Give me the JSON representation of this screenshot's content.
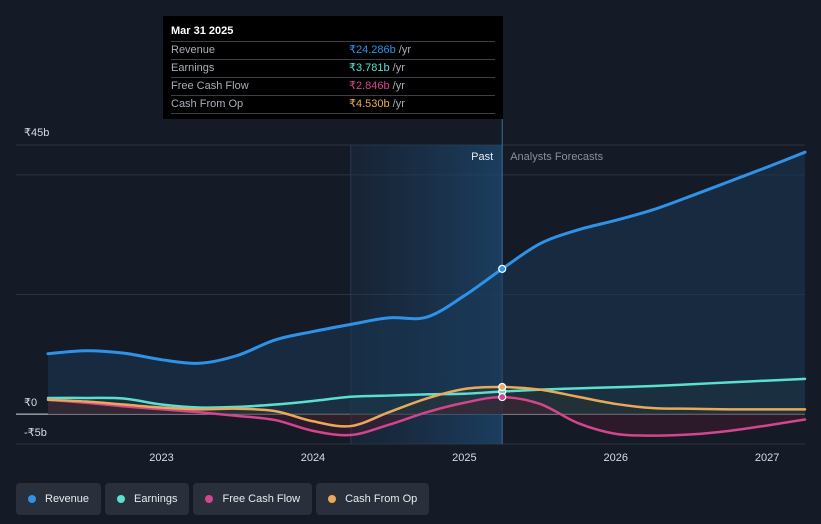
{
  "chart_data": {
    "type": "area",
    "y_unit_prefix": "₹",
    "ylim": [
      -5,
      45
    ],
    "y_tick_labels": [
      {
        "value": 45,
        "label": "₹45b"
      },
      {
        "value": 0,
        "label": "₹0"
      },
      {
        "value": -5,
        "label": "-₹5b"
      }
    ],
    "x_range": [
      2022.25,
      2027.25
    ],
    "x_ticks": [
      {
        "value": 2023,
        "label": "2023"
      },
      {
        "value": 2024,
        "label": "2024"
      },
      {
        "value": 2025,
        "label": "2025"
      },
      {
        "value": 2026,
        "label": "2026"
      },
      {
        "value": 2027,
        "label": "2027"
      }
    ],
    "shaded_region_start": 2024.25,
    "divider_x": 2025.25,
    "past_label": "Past",
    "forecast_label": "Analysts Forecasts",
    "series": [
      {
        "name": "Revenue",
        "color": "#2e93e8",
        "points": [
          [
            2022.25,
            10.1
          ],
          [
            2022.5,
            10.6
          ],
          [
            2022.75,
            10.2
          ],
          [
            2023.0,
            9.1
          ],
          [
            2023.25,
            8.5
          ],
          [
            2023.5,
            9.8
          ],
          [
            2023.75,
            12.4
          ],
          [
            2024.0,
            13.8
          ],
          [
            2024.25,
            15.0
          ],
          [
            2024.5,
            16.1
          ],
          [
            2024.75,
            16.2
          ],
          [
            2025.0,
            19.8
          ],
          [
            2025.25,
            24.286
          ],
          [
            2025.5,
            28.5
          ],
          [
            2025.75,
            30.8
          ],
          [
            2026.0,
            32.4
          ],
          [
            2026.25,
            34.2
          ],
          [
            2026.5,
            36.5
          ],
          [
            2026.75,
            38.9
          ],
          [
            2027.0,
            41.3
          ],
          [
            2027.25,
            43.8
          ]
        ]
      },
      {
        "name": "Earnings",
        "color": "#5be0cf",
        "points": [
          [
            2022.25,
            2.7
          ],
          [
            2022.5,
            2.7
          ],
          [
            2022.75,
            2.6
          ],
          [
            2023.0,
            1.6
          ],
          [
            2023.25,
            1.1
          ],
          [
            2023.5,
            1.2
          ],
          [
            2023.75,
            1.6
          ],
          [
            2024.0,
            2.2
          ],
          [
            2024.25,
            2.9
          ],
          [
            2024.5,
            3.1
          ],
          [
            2024.75,
            3.3
          ],
          [
            2025.0,
            3.4
          ],
          [
            2025.25,
            3.781
          ],
          [
            2025.5,
            4.1
          ],
          [
            2025.75,
            4.3
          ],
          [
            2026.0,
            4.5
          ],
          [
            2026.25,
            4.7
          ],
          [
            2026.5,
            5.0
          ],
          [
            2026.75,
            5.3
          ],
          [
            2027.0,
            5.6
          ],
          [
            2027.25,
            5.9
          ]
        ]
      },
      {
        "name": "Free Cash Flow",
        "color": "#d1468c",
        "points": [
          [
            2022.25,
            2.4
          ],
          [
            2022.5,
            1.9
          ],
          [
            2022.75,
            1.3
          ],
          [
            2023.0,
            0.8
          ],
          [
            2023.25,
            0.3
          ],
          [
            2023.5,
            -0.3
          ],
          [
            2023.75,
            -1.0
          ],
          [
            2024.0,
            -2.8
          ],
          [
            2024.25,
            -3.5
          ],
          [
            2024.5,
            -1.8
          ],
          [
            2024.75,
            0.3
          ],
          [
            2025.0,
            1.9
          ],
          [
            2025.25,
            2.846
          ],
          [
            2025.5,
            1.7
          ],
          [
            2025.75,
            -1.5
          ],
          [
            2026.0,
            -3.3
          ],
          [
            2026.25,
            -3.6
          ],
          [
            2026.5,
            -3.4
          ],
          [
            2026.75,
            -2.8
          ],
          [
            2027.0,
            -1.9
          ],
          [
            2027.25,
            -0.9
          ]
        ]
      },
      {
        "name": "Cash From Op",
        "color": "#e8aa5a",
        "points": [
          [
            2022.25,
            2.4
          ],
          [
            2022.5,
            2.1
          ],
          [
            2022.75,
            1.6
          ],
          [
            2023.0,
            1.1
          ],
          [
            2023.25,
            0.8
          ],
          [
            2023.5,
            0.9
          ],
          [
            2023.75,
            0.5
          ],
          [
            2024.0,
            -1.2
          ],
          [
            2024.25,
            -2.0
          ],
          [
            2024.5,
            0.3
          ],
          [
            2024.75,
            2.6
          ],
          [
            2025.0,
            4.2
          ],
          [
            2025.25,
            4.53
          ],
          [
            2025.5,
            4.1
          ],
          [
            2025.75,
            2.9
          ],
          [
            2026.0,
            1.7
          ],
          [
            2026.25,
            1.0
          ],
          [
            2026.5,
            0.9
          ],
          [
            2026.75,
            0.8
          ],
          [
            2027.0,
            0.8
          ],
          [
            2027.25,
            0.8
          ]
        ]
      }
    ]
  },
  "tooltip": {
    "date": "Mar 31 2025",
    "rows": [
      {
        "label": "Revenue",
        "value": "₹24.286b",
        "unit": "/yr",
        "color": "#2e93e8"
      },
      {
        "label": "Earnings",
        "value": "₹3.781b",
        "unit": "/yr",
        "color": "#5be0cf"
      },
      {
        "label": "Free Cash Flow",
        "value": "₹2.846b",
        "unit": "/yr",
        "color": "#d1468c"
      },
      {
        "label": "Cash From Op",
        "value": "₹4.530b",
        "unit": "/yr",
        "color": "#e8aa5a"
      }
    ]
  },
  "legend": [
    {
      "label": "Revenue",
      "color": "#2e93e8"
    },
    {
      "label": "Earnings",
      "color": "#5be0cf"
    },
    {
      "label": "Free Cash Flow",
      "color": "#d1468c"
    },
    {
      "label": "Cash From Op",
      "color": "#e8aa5a"
    }
  ]
}
